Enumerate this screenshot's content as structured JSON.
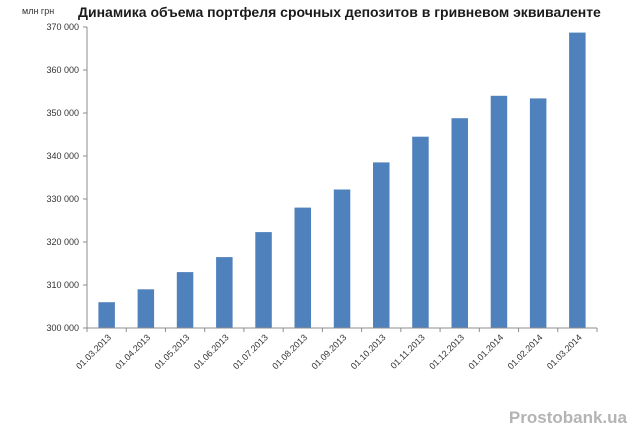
{
  "watermark": "Prostobank.ua",
  "chart_data": {
    "type": "bar",
    "title": "Динамика объема портфеля  срочных депозитов в гривневом эквиваленте",
    "ylabel": "млн грн",
    "xlabel": "",
    "categories": [
      "01.03.2013",
      "01.04.2013",
      "01.05.2013",
      "01.06.2013",
      "01.07.2013",
      "01.08.2013",
      "01.09.2013",
      "01.10.2013",
      "01.11.2013",
      "01.12.2013",
      "01.01.2014",
      "01.02.2014",
      "01.03.2014"
    ],
    "values": [
      306000,
      309000,
      313000,
      316500,
      322300,
      328000,
      332200,
      338500,
      344500,
      348800,
      354000,
      353400,
      368700
    ],
    "ylim": [
      300000,
      370000
    ],
    "yticks": [
      300000,
      310000,
      320000,
      330000,
      340000,
      350000,
      360000,
      370000
    ],
    "ytick_labels": [
      "300 000",
      "310 000",
      "320 000",
      "330 000",
      "340 000",
      "350 000",
      "360 000",
      "370 000"
    ],
    "bar_color": "#4f81bd",
    "grid": false,
    "legend": "none"
  }
}
